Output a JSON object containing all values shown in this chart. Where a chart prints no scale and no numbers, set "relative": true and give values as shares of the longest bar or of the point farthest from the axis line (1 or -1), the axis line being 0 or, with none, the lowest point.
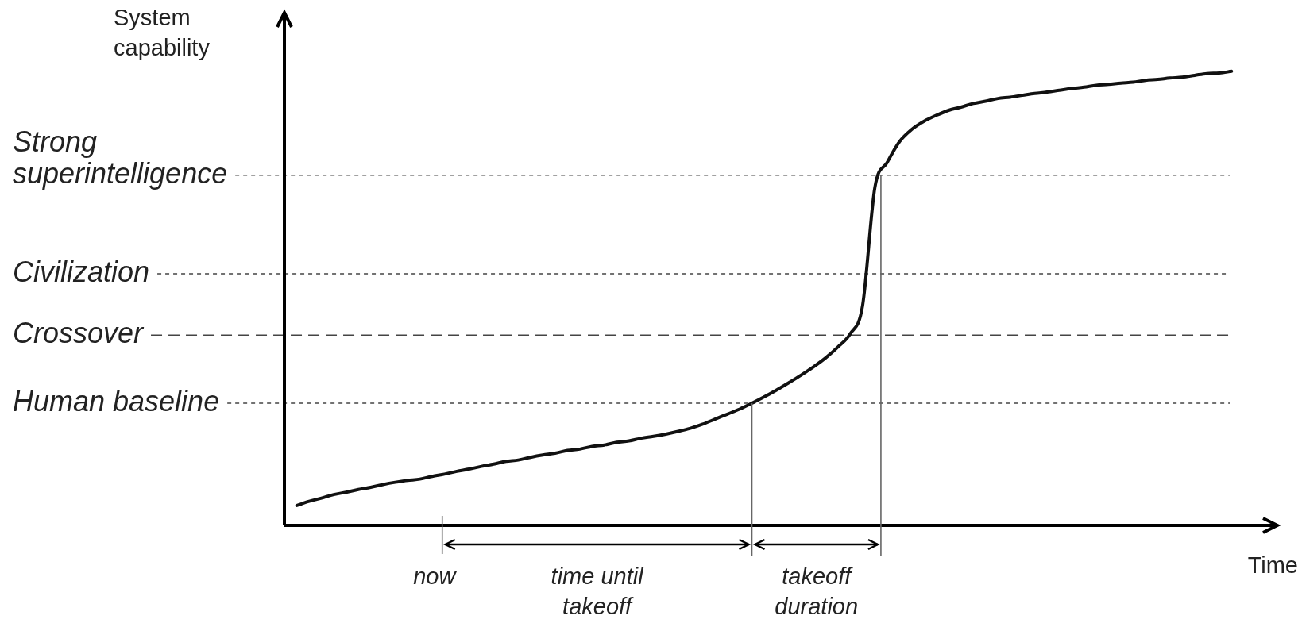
{
  "chart_data": {
    "type": "line",
    "relative": true,
    "ylabel": "System capability",
    "xlabel": "Time",
    "tick_labels": false,
    "legend": false,
    "categories": [
      null,
      null,
      null,
      null,
      null,
      null,
      null,
      null,
      null,
      null,
      null,
      null,
      null,
      null,
      null,
      null,
      null,
      null,
      null,
      null,
      null,
      null,
      null,
      null,
      null,
      null,
      null,
      null,
      null,
      null,
      null,
      null,
      null,
      null,
      null,
      null,
      null,
      null,
      null,
      null,
      null,
      null,
      null,
      null,
      null,
      null,
      null,
      null,
      null,
      null,
      null,
      null,
      null,
      null,
      null,
      null,
      null,
      null,
      null,
      null,
      null,
      null,
      null,
      null,
      null,
      null,
      null,
      null,
      null,
      null,
      null,
      null,
      null,
      null,
      null,
      null,
      null
    ],
    "series": [
      {
        "color": "#111111",
        "values": [
          0.044,
          0.053,
          0.06,
          0.068,
          0.073,
          0.079,
          0.084,
          0.09,
          0.095,
          0.099,
          0.102,
          0.108,
          0.113,
          0.119,
          0.124,
          0.13,
          0.135,
          0.141,
          0.144,
          0.15,
          0.155,
          0.159,
          0.165,
          0.168,
          0.174,
          0.177,
          0.183,
          0.186,
          0.192,
          0.196,
          0.201,
          0.207,
          0.214,
          0.223,
          0.234,
          0.245,
          0.256,
          0.269,
          0.283,
          0.298,
          0.314,
          0.331,
          0.349,
          0.369,
          0.393,
          0.422,
          0.484,
          0.744,
          0.799,
          0.845,
          0.872,
          0.89,
          0.903,
          0.914,
          0.921,
          0.929,
          0.934,
          0.94,
          0.943,
          0.947,
          0.951,
          0.954,
          0.958,
          0.962,
          0.965,
          0.969,
          0.971,
          0.974,
          0.976,
          0.98,
          0.982,
          0.985,
          0.987,
          0.991,
          0.995,
          0.996,
          1
        ]
      }
    ],
    "ref_lines": [
      {
        "axis": "y",
        "value": 0.269,
        "label": "Human baseline",
        "line_style": "dotted",
        "color": "#444444"
      },
      {
        "axis": "y",
        "value": 0.419,
        "label": "Crossover",
        "line_style": "dashed",
        "color": "#444444"
      },
      {
        "axis": "y",
        "value": 0.554,
        "label": "Civilization",
        "line_style": "dotted",
        "color": "#444444"
      },
      {
        "axis": "y",
        "value": 0.771,
        "label": "Strong superintelligence",
        "line_style": "dotted",
        "color": "#444444"
      }
    ],
    "annotations": [
      "now",
      "time until takeoff",
      "takeoff duration"
    ]
  }
}
